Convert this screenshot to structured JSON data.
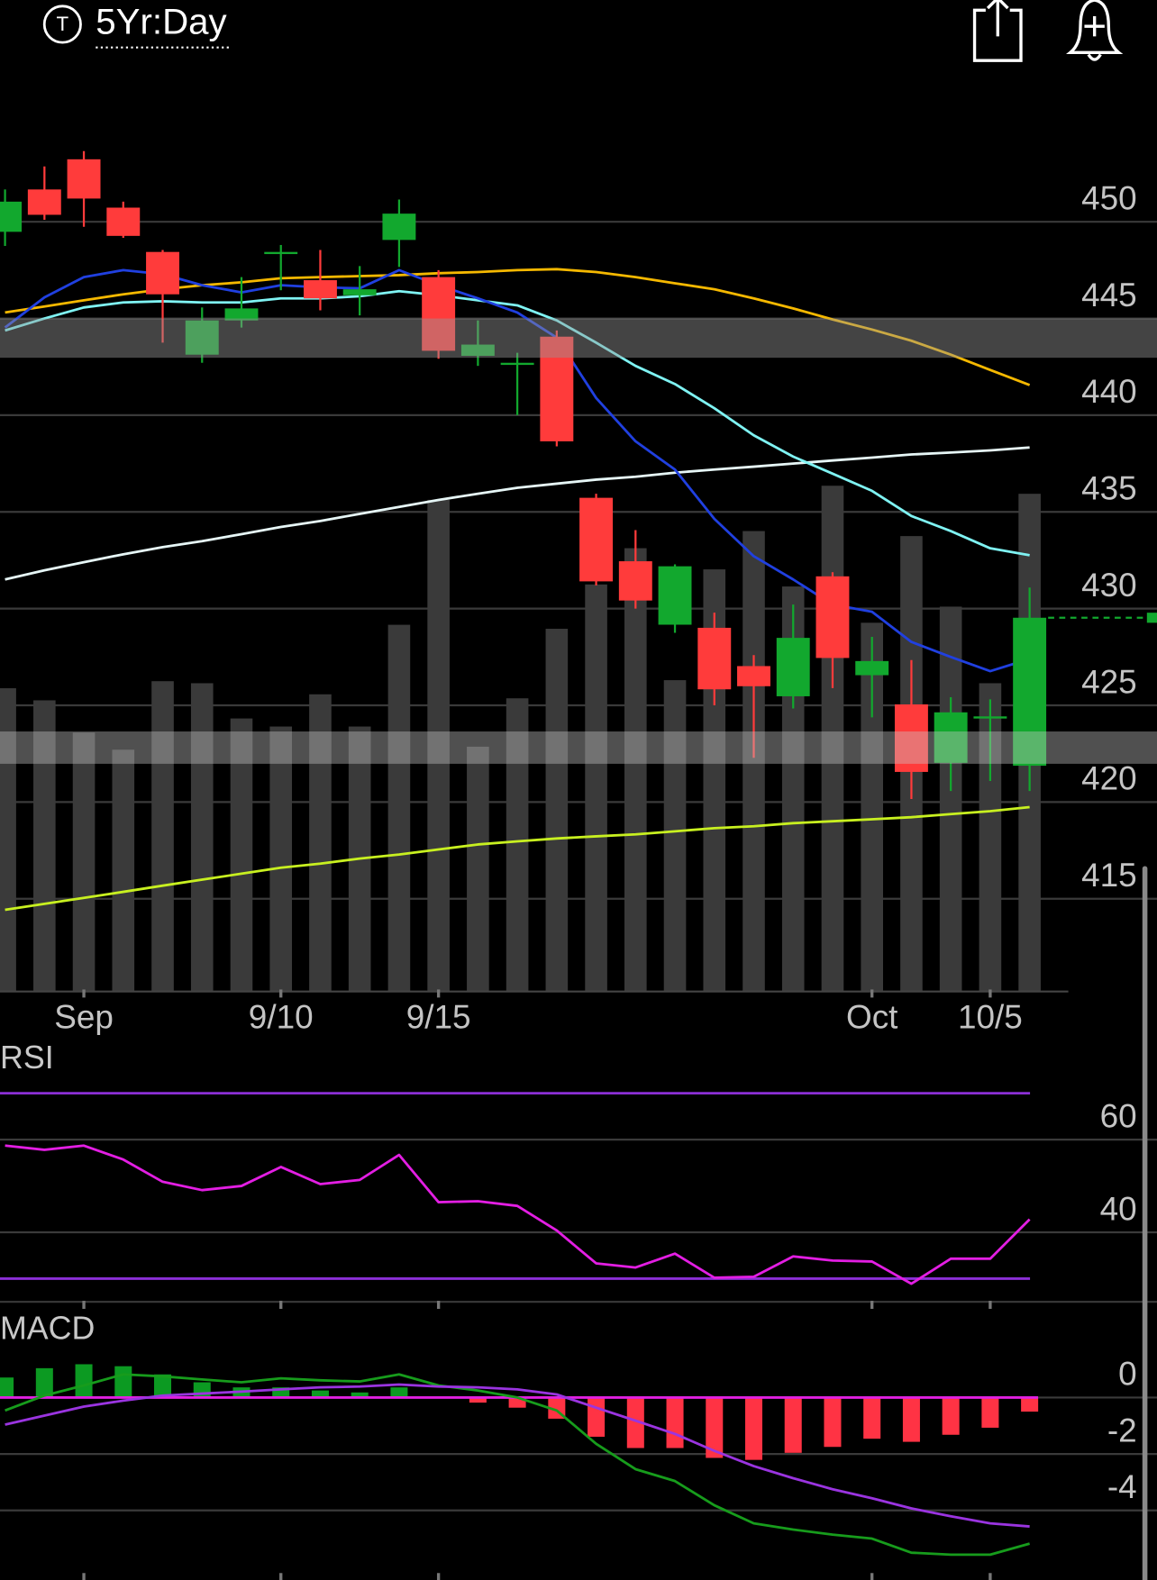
{
  "header": {
    "icon": "T",
    "title": "5Yr:Day"
  },
  "chart_data": [
    {
      "type": "candlestick",
      "categories": [
        null,
        null,
        "Sep",
        null,
        null,
        null,
        null,
        "9/10",
        null,
        null,
        null,
        "9/15",
        null,
        null,
        null,
        null,
        null,
        null,
        null,
        null,
        null,
        null,
        "Oct",
        null,
        null,
        "10/5",
        null
      ],
      "open": [
        449.48,
        451.67,
        453.23,
        450.73,
        448.44,
        443.13,
        444.9,
        448.33,
        446.98,
        446.2,
        449.06,
        447.14,
        443.07,
        442.6,
        444.06,
        435.73,
        432.45,
        429.17,
        429.01,
        427.03,
        425.47,
        431.67,
        426.56,
        425.05,
        422.03,
        424.32,
        421.88
      ],
      "high": [
        451.67,
        452.86,
        453.65,
        451.04,
        448.54,
        445.57,
        447.14,
        448.8,
        448.54,
        447.71,
        451.15,
        447.5,
        444.9,
        443.23,
        444.38,
        435.94,
        434.06,
        432.29,
        429.79,
        427.6,
        430.21,
        431.88,
        428.54,
        427.34,
        425.42,
        425.31,
        431.09
      ],
      "low": [
        448.75,
        450.1,
        449.74,
        449.17,
        443.75,
        442.71,
        444.53,
        446.46,
        445.42,
        445.16,
        447.66,
        442.92,
        442.55,
        440,
        438.39,
        431.2,
        430,
        428.75,
        425,
        422.29,
        424.84,
        425.89,
        424.38,
        420.16,
        420.57,
        421.09,
        420.57
      ],
      "close": [
        451.04,
        450.36,
        451.2,
        449.27,
        446.25,
        444.9,
        445.52,
        448.44,
        446.04,
        446.51,
        450.42,
        443.33,
        443.65,
        442.71,
        438.65,
        431.41,
        430.42,
        432.19,
        425.83,
        425.99,
        428.49,
        427.45,
        427.29,
        421.56,
        424.64,
        424.43,
        429.53
      ],
      "up_color": "#12a82e",
      "down_color": "#ff3b3b",
      "volume": [
        301,
        289,
        257,
        240,
        308,
        306,
        271,
        263,
        295,
        263,
        364,
        488,
        243,
        291,
        360,
        404,
        440,
        309,
        419,
        457,
        402,
        502,
        366,
        452,
        382,
        306,
        494
      ],
      "volume_color": "#3a3a3a",
      "moving_averages": [
        {
          "color": "#c8f020",
          "values": [
            414.43,
            414.74,
            415.05,
            415.36,
            415.68,
            415.99,
            416.3,
            416.61,
            416.82,
            417.08,
            417.29,
            417.55,
            417.81,
            417.97,
            418.12,
            418.23,
            418.33,
            418.49,
            418.65,
            418.75,
            418.91,
            419.01,
            419.11,
            419.22,
            419.38,
            419.53,
            419.74
          ]
        },
        {
          "color": "#e6f6f6",
          "values": [
            431.51,
            431.98,
            432.4,
            432.81,
            433.18,
            433.49,
            433.85,
            434.22,
            434.53,
            434.9,
            435.26,
            435.62,
            435.94,
            436.25,
            436.46,
            436.67,
            436.82,
            437.03,
            437.19,
            437.34,
            437.5,
            437.66,
            437.81,
            437.97,
            438.07,
            438.18,
            438.33
          ]
        },
        {
          "color": "#f5b800",
          "values": [
            445.31,
            445.62,
            445.94,
            446.25,
            446.51,
            446.72,
            446.87,
            447.08,
            447.14,
            447.19,
            447.24,
            447.34,
            447.4,
            447.5,
            447.55,
            447.4,
            447.14,
            446.82,
            446.51,
            446.04,
            445.52,
            444.95,
            444.43,
            443.85,
            443.13,
            442.34,
            441.56
          ]
        },
        {
          "color": "#7ff3f3",
          "values": [
            444.38,
            445,
            445.57,
            445.83,
            445.89,
            445.83,
            445.83,
            446.04,
            446.04,
            446.15,
            446.41,
            446.2,
            445.94,
            445.68,
            444.9,
            443.75,
            442.55,
            441.61,
            440.36,
            438.96,
            437.86,
            436.98,
            436.09,
            434.79,
            434.01,
            433.12,
            432.76
          ]
        },
        {
          "color": "#2040e0",
          "values": [
            444.53,
            446.09,
            447.14,
            447.5,
            447.29,
            446.72,
            446.35,
            446.72,
            446.61,
            446.56,
            447.5,
            446.72,
            446.04,
            445.31,
            444.01,
            440.89,
            438.65,
            437.19,
            434.64,
            432.71,
            431.51,
            430.21,
            429.84,
            428.28,
            427.5,
            426.77,
            427.4
          ]
        }
      ],
      "zones": [
        [
          442.97,
          445
        ],
        [
          421.98,
          423.65
        ]
      ],
      "ylim": [
        410,
        458
      ],
      "yticks": [
        415,
        420,
        425,
        430,
        435,
        440,
        445,
        450
      ],
      "grid": true
    },
    {
      "type": "line",
      "label": "RSI",
      "series": [
        {
          "color": "#e31ee3",
          "values": [
            58.7,
            57.8,
            58.7,
            55.7,
            50.9,
            49.1,
            50,
            54.1,
            50.4,
            51.3,
            56.7,
            46.5,
            46.7,
            45.7,
            40.4,
            33.3,
            32.4,
            35.4,
            30.2,
            30.4,
            34.8,
            33.9,
            33.7,
            28.9,
            34.3,
            34.3,
            42.8
          ]
        }
      ],
      "levels": [
        30,
        70
      ],
      "level_color": "#8c2fd6",
      "ylim": [
        25,
        80
      ],
      "yticks": [
        40,
        60
      ],
      "grid": true
    },
    {
      "type": "combo",
      "label": "MACD",
      "histogram": {
        "up_color": "#0c9a22",
        "down_color": "#ff3344",
        "values": [
          0.71,
          1.04,
          1.18,
          1.11,
          0.82,
          0.54,
          0.36,
          0.36,
          0.25,
          0.18,
          0.36,
          0,
          -0.18,
          -0.36,
          -0.75,
          -1.39,
          -1.79,
          -1.79,
          -2.14,
          -2.21,
          -1.96,
          -1.75,
          -1.46,
          -1.57,
          -1.32,
          -1.07,
          -0.5
        ]
      },
      "series": [
        {
          "color": "#179c1c",
          "values": [
            -0.46,
            0.07,
            0.43,
            0.82,
            0.75,
            0.64,
            0.54,
            0.68,
            0.61,
            0.57,
            0.82,
            0.43,
            0.25,
            0,
            -0.46,
            -1.64,
            -2.54,
            -2.96,
            -3.82,
            -4.46,
            -4.68,
            -4.86,
            -5,
            -5.5,
            -5.57,
            -5.57,
            -5.18
          ]
        },
        {
          "color": "#9a34e0",
          "values": [
            -0.96,
            -0.64,
            -0.32,
            -0.11,
            0.07,
            0.14,
            0.21,
            0.29,
            0.36,
            0.39,
            0.46,
            0.39,
            0.36,
            0.29,
            0.11,
            -0.36,
            -0.82,
            -1.29,
            -1.89,
            -2.43,
            -2.86,
            -3.25,
            -3.57,
            -3.93,
            -4.21,
            -4.46,
            -4.57
          ]
        }
      ],
      "zero_color": "#e020e0",
      "ylim": [
        -6.4,
        1.7
      ],
      "yticks": [
        0,
        -2,
        -4
      ],
      "grid": true
    }
  ]
}
